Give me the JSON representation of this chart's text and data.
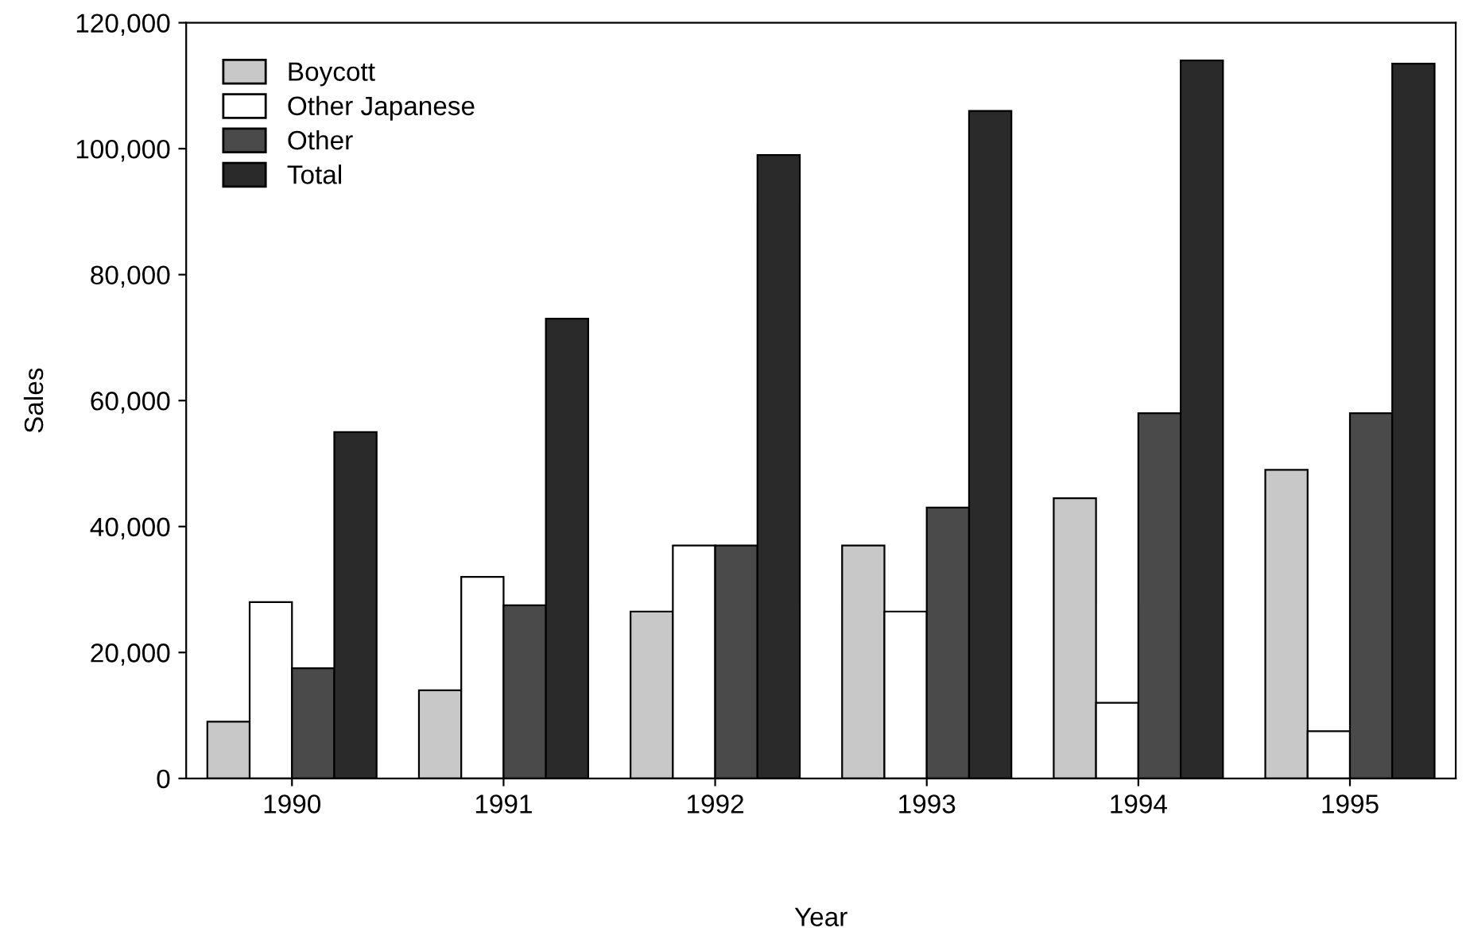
{
  "chart_data": {
    "type": "bar",
    "xlabel": "Year",
    "ylabel": "Sales",
    "categories": [
      "1990",
      "1991",
      "1992",
      "1993",
      "1994",
      "1995"
    ],
    "series": [
      {
        "name": "Boycott",
        "color": "#c8c8c8",
        "values": [
          9000,
          14000,
          26500,
          37000,
          44500,
          49000
        ]
      },
      {
        "name": "Other Japanese",
        "color": "#ffffff",
        "values": [
          28000,
          32000,
          37000,
          26500,
          12000,
          7500
        ]
      },
      {
        "name": "Other",
        "color": "#4a4a4a",
        "values": [
          17500,
          27500,
          37000,
          43000,
          58000,
          58000
        ]
      },
      {
        "name": "Total",
        "color": "#2a2a2a",
        "values": [
          55000,
          73000,
          99000,
          106000,
          114000,
          113500
        ]
      }
    ],
    "ylim": [
      0,
      120000
    ],
    "yticks": [
      {
        "value": 0,
        "label": "0"
      },
      {
        "value": 20000,
        "label": "20,000"
      },
      {
        "value": 40000,
        "label": "40,000"
      },
      {
        "value": 60000,
        "label": "60,000"
      },
      {
        "value": 80000,
        "label": "80,000"
      },
      {
        "value": 100000,
        "label": "100,000"
      },
      {
        "value": 120000,
        "label": "120,000"
      }
    ],
    "grid": false,
    "legend": "top left"
  }
}
